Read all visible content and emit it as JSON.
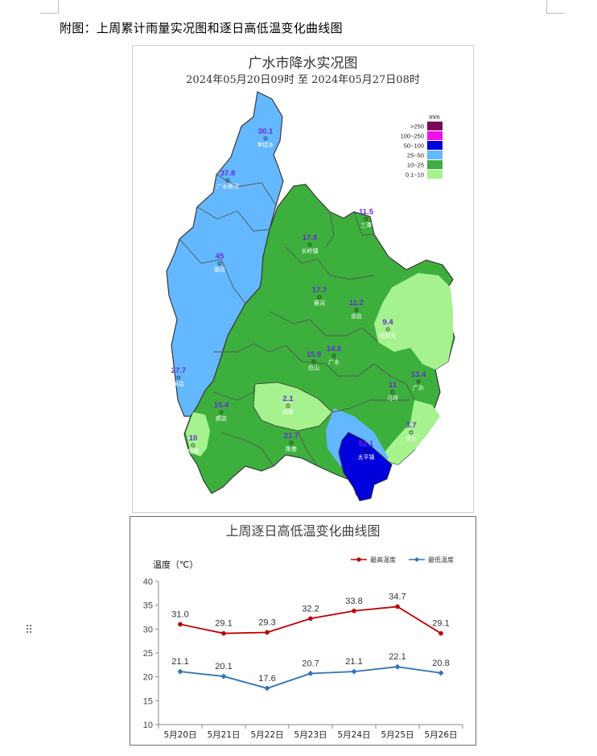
{
  "document": {
    "caption": "附图：上周累计雨量实况图和逐日高低温变化曲线图"
  },
  "drag_icon": "⠿",
  "map": {
    "title": "广水市降水实况图",
    "subtitle": "2024年05月20日09时  至  2024年05月27日08时",
    "legend": {
      "unit": "mm",
      "items": [
        {
          "label": ">250",
          "color": "#7a0a55"
        },
        {
          "label": "100~250",
          "color": "#ee11ee"
        },
        {
          "label": "50~100",
          "color": "#0000dd"
        },
        {
          "label": "25~50",
          "color": "#63b8ff"
        },
        {
          "label": "10~25",
          "color": "#3daf3d"
        },
        {
          "label": "0.1~10",
          "color": "#a6f28f"
        }
      ]
    },
    "stations": [
      {
        "value": "30.1",
        "name": "李店乡"
      },
      {
        "value": "37.8",
        "name": "广水蔡河"
      },
      {
        "value": "45",
        "name": "骆店"
      },
      {
        "value": "27.7",
        "name": "吴店"
      },
      {
        "value": "10",
        "name": "杨寨"
      },
      {
        "value": "15.4",
        "name": "郝店"
      },
      {
        "value": "2.1",
        "name": "杨寨"
      },
      {
        "value": "21.7",
        "name": "陈巷"
      },
      {
        "value": "17.8",
        "name": "长岭镇"
      },
      {
        "value": "11.5",
        "name": "三潭"
      },
      {
        "value": "17.7",
        "name": "蔡河"
      },
      {
        "value": "11.2",
        "name": "余店"
      },
      {
        "value": "9.4",
        "name": "武胜关"
      },
      {
        "value": "15.9",
        "name": "应山"
      },
      {
        "value": "14.6",
        "name": "广水"
      },
      {
        "value": "13.4",
        "name": "广办"
      },
      {
        "value": "11",
        "name": "马坪"
      },
      {
        "value": "3.7",
        "name": "余店"
      },
      {
        "value": "52.1",
        "name": "太平镇"
      }
    ]
  },
  "chart_data": {
    "type": "line",
    "title": "上周逐日高低温变化曲线图",
    "ylabel": "温度（℃）",
    "xlabel": "",
    "categories": [
      "5月20日",
      "5月21日",
      "5月22日",
      "5月23日",
      "5月24日",
      "5月25日",
      "5月26日"
    ],
    "series": [
      {
        "name": "最高温度",
        "color": "#c00000",
        "values": [
          31.0,
          29.1,
          29.3,
          32.2,
          33.8,
          34.7,
          29.1
        ]
      },
      {
        "name": "最低温度",
        "color": "#2e75b6",
        "values": [
          21.1,
          20.1,
          17.6,
          20.7,
          21.1,
          22.1,
          20.8
        ]
      }
    ],
    "ylim": [
      10,
      40
    ],
    "yticks": [
      10,
      15,
      20,
      25,
      30,
      35,
      40
    ],
    "legend_position": "top-right",
    "grid": false
  }
}
